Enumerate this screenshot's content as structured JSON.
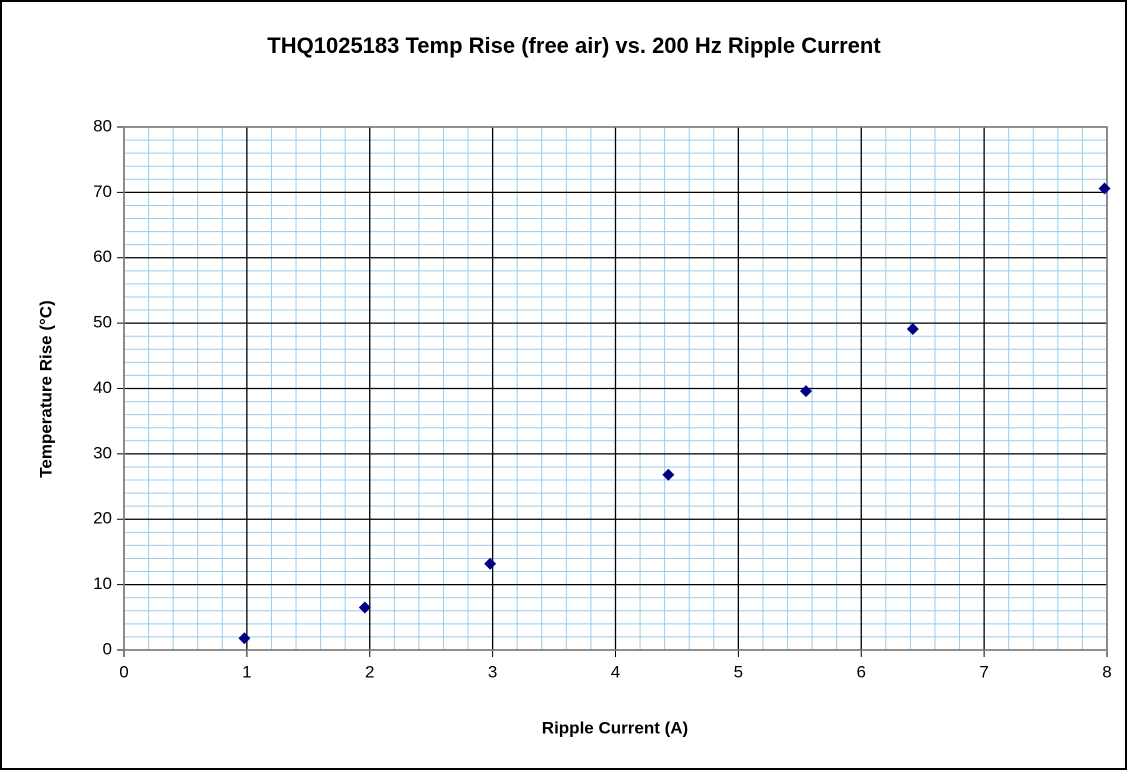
{
  "chart_data": {
    "type": "scatter",
    "title": "THQ1025183 Temp Rise (free air) vs. 200 Hz Ripple Current",
    "x_label": "Ripple Current (A)",
    "y_label": "Temperature Rise (°C)",
    "series": [
      {
        "name": "Temp Rise",
        "color": "#000080",
        "x": [
          0.98,
          1.96,
          2.98,
          4.43,
          5.55,
          6.42,
          7.98
        ],
        "values": [
          1.8,
          6.5,
          13.2,
          26.8,
          39.6,
          49.1,
          70.6
        ]
      }
    ],
    "xlim": [
      0,
      8
    ],
    "xticks": [
      0,
      1,
      2,
      3,
      4,
      5,
      6,
      7,
      8
    ],
    "ylim": [
      0,
      80
    ],
    "yticks": [
      0,
      10,
      20,
      30,
      40,
      50,
      60,
      70,
      80
    ],
    "grid": true,
    "grid_color": "#000000",
    "minor_grid_step": {
      "x": 0.2,
      "y": 2
    },
    "minor_grid_color": "#99ccee",
    "legend": false
  }
}
